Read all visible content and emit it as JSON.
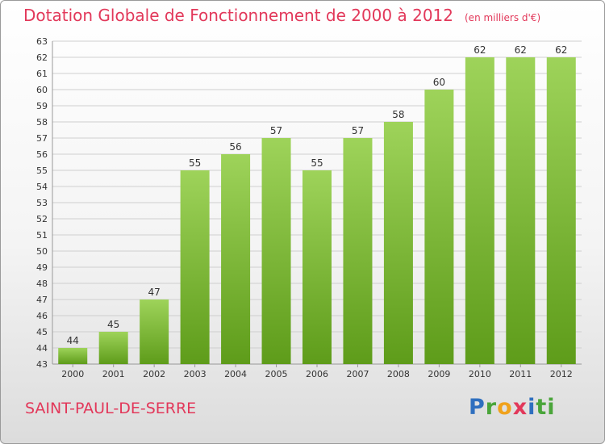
{
  "header": {
    "title": "Dotation Globale de Fonctionnement de 2000 à 2012",
    "unit": "(en milliers d'€)"
  },
  "footer": {
    "commune": "SAINT-PAUL-DE-SERRE",
    "logo_letters": [
      "P",
      "r",
      "o",
      "x",
      "i",
      "ti"
    ]
  },
  "colors": {
    "title": "#e2385a",
    "bar_top": "#9ed35a",
    "bar_bottom": "#5e9c1a"
  },
  "chart_data": {
    "type": "bar",
    "categories": [
      "2000",
      "2001",
      "2002",
      "2003",
      "2004",
      "2005",
      "2006",
      "2007",
      "2008",
      "2009",
      "2010",
      "2011",
      "2012"
    ],
    "values": [
      44,
      45,
      47,
      55,
      56,
      57,
      55,
      57,
      58,
      60,
      62,
      62,
      62
    ],
    "title": "Dotation Globale de Fonctionnement de 2000 à 2012",
    "subtitle": "(en milliers d'€)",
    "ylim": [
      43,
      63
    ],
    "yticks": [
      43,
      44,
      45,
      46,
      47,
      48,
      49,
      50,
      51,
      52,
      53,
      54,
      55,
      56,
      57,
      58,
      59,
      60,
      61,
      62,
      63
    ],
    "grid": true,
    "data_labels": true
  }
}
